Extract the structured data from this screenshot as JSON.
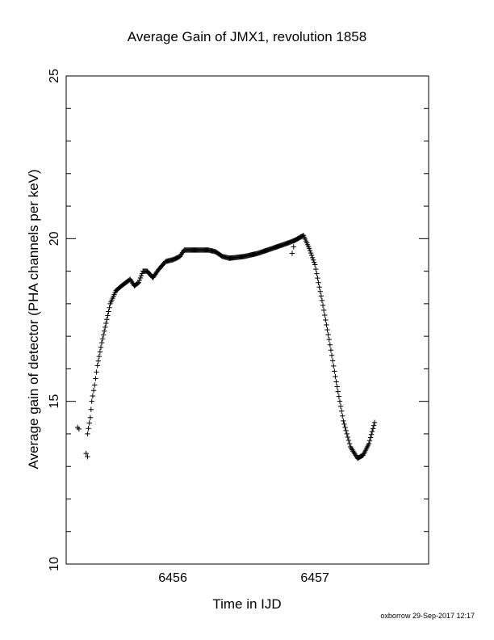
{
  "chart_data": {
    "type": "scatter",
    "title": "Average Gain of JMX1, revolution 1858",
    "xlabel": "Time in IJD",
    "ylabel": "Average gain of detector (PHA channels per keV)",
    "xlim": [
      6455.25,
      6457.8
    ],
    "ylim": [
      10,
      25
    ],
    "xticks": [
      6456,
      6457
    ],
    "yticks": [
      10,
      15,
      20,
      25
    ],
    "xtick_labels": [
      "6456",
      "6457"
    ],
    "ytick_labels": [
      "10",
      "15",
      "20",
      "25"
    ],
    "grid": false,
    "marker": "plus",
    "marker_color": "#000000",
    "anchor_points": [
      [
        6455.33,
        14.2
      ],
      [
        6455.34,
        14.15
      ],
      [
        6455.39,
        13.4
      ],
      [
        6455.4,
        13.3
      ],
      [
        6455.4,
        14.0
      ],
      [
        6455.42,
        14.5
      ],
      [
        6455.43,
        15.0
      ],
      [
        6455.45,
        15.5
      ],
      [
        6455.47,
        16.1
      ],
      [
        6455.5,
        16.8
      ],
      [
        6455.53,
        17.4
      ],
      [
        6455.56,
        18.0
      ],
      [
        6455.6,
        18.4
      ],
      [
        6455.64,
        18.55
      ],
      [
        6455.7,
        18.75
      ],
      [
        6455.73,
        18.55
      ],
      [
        6455.76,
        18.65
      ],
      [
        6455.79,
        19.0
      ],
      [
        6455.82,
        19.0
      ],
      [
        6455.86,
        18.8
      ],
      [
        6455.9,
        19.05
      ],
      [
        6455.95,
        19.3
      ],
      [
        6456.0,
        19.35
      ],
      [
        6456.05,
        19.45
      ],
      [
        6456.08,
        19.65
      ],
      [
        6456.15,
        19.65
      ],
      [
        6456.25,
        19.65
      ],
      [
        6456.3,
        19.6
      ],
      [
        6456.35,
        19.45
      ],
      [
        6456.4,
        19.4
      ],
      [
        6456.5,
        19.45
      ],
      [
        6456.6,
        19.55
      ],
      [
        6456.7,
        19.7
      ],
      [
        6456.8,
        19.85
      ],
      [
        6456.86,
        19.95
      ],
      [
        6456.92,
        20.1
      ],
      [
        6456.96,
        19.7
      ],
      [
        6457.0,
        19.2
      ],
      [
        6457.05,
        18.1
      ],
      [
        6457.1,
        16.9
      ],
      [
        6457.15,
        15.6
      ],
      [
        6457.2,
        14.4
      ],
      [
        6457.25,
        13.6
      ],
      [
        6457.3,
        13.25
      ],
      [
        6457.34,
        13.35
      ],
      [
        6457.38,
        13.7
      ],
      [
        6457.42,
        14.35
      ]
    ],
    "outlier_points": [
      [
        6456.84,
        19.55
      ],
      [
        6456.85,
        19.75
      ],
      [
        6456.88,
        20.0
      ],
      [
        6456.9,
        20.05
      ]
    ]
  },
  "footer": "oxborrow 29-Sep-2017 12:17"
}
